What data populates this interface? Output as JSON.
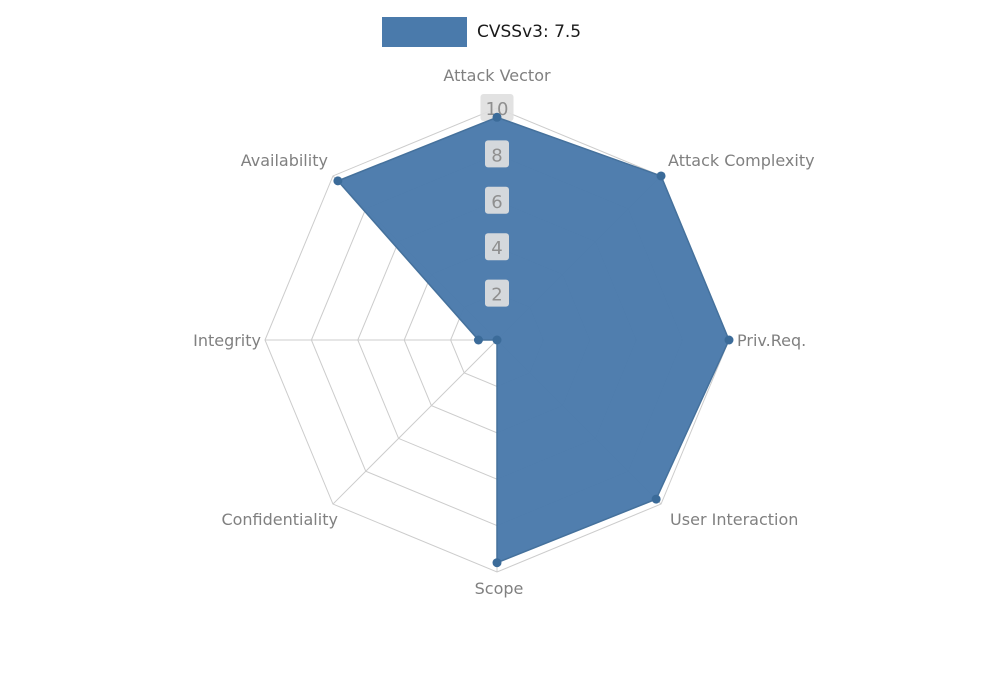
{
  "legend": {
    "label": "CVSSv3: 7.5"
  },
  "chart_data": {
    "type": "radar",
    "title": "CVSSv3: 7.5",
    "categories": [
      "Attack Vector",
      "Attack Complexity",
      "Priv.Req.",
      "User Interaction",
      "Scope",
      "Confidentiality",
      "Integrity",
      "Availability"
    ],
    "series": [
      {
        "name": "CVSSv3: 7.5",
        "values": [
          9.6,
          10,
          10,
          9.7,
          9.6,
          0,
          0.8,
          9.7
        ]
      }
    ],
    "ticks": [
      2,
      4,
      6,
      8,
      10
    ],
    "rmax": 10,
    "grid": true,
    "legend_position": "top",
    "colors": {
      "fill": "#4a7aab",
      "stroke": "#45719c",
      "marker": "#3b6b99",
      "grid": "#cccccc",
      "axis_label": "#808080",
      "tick_text": "#8f8f8f",
      "tick_box": "#e0e0e0",
      "legend_text": "#1a1a1a"
    }
  }
}
